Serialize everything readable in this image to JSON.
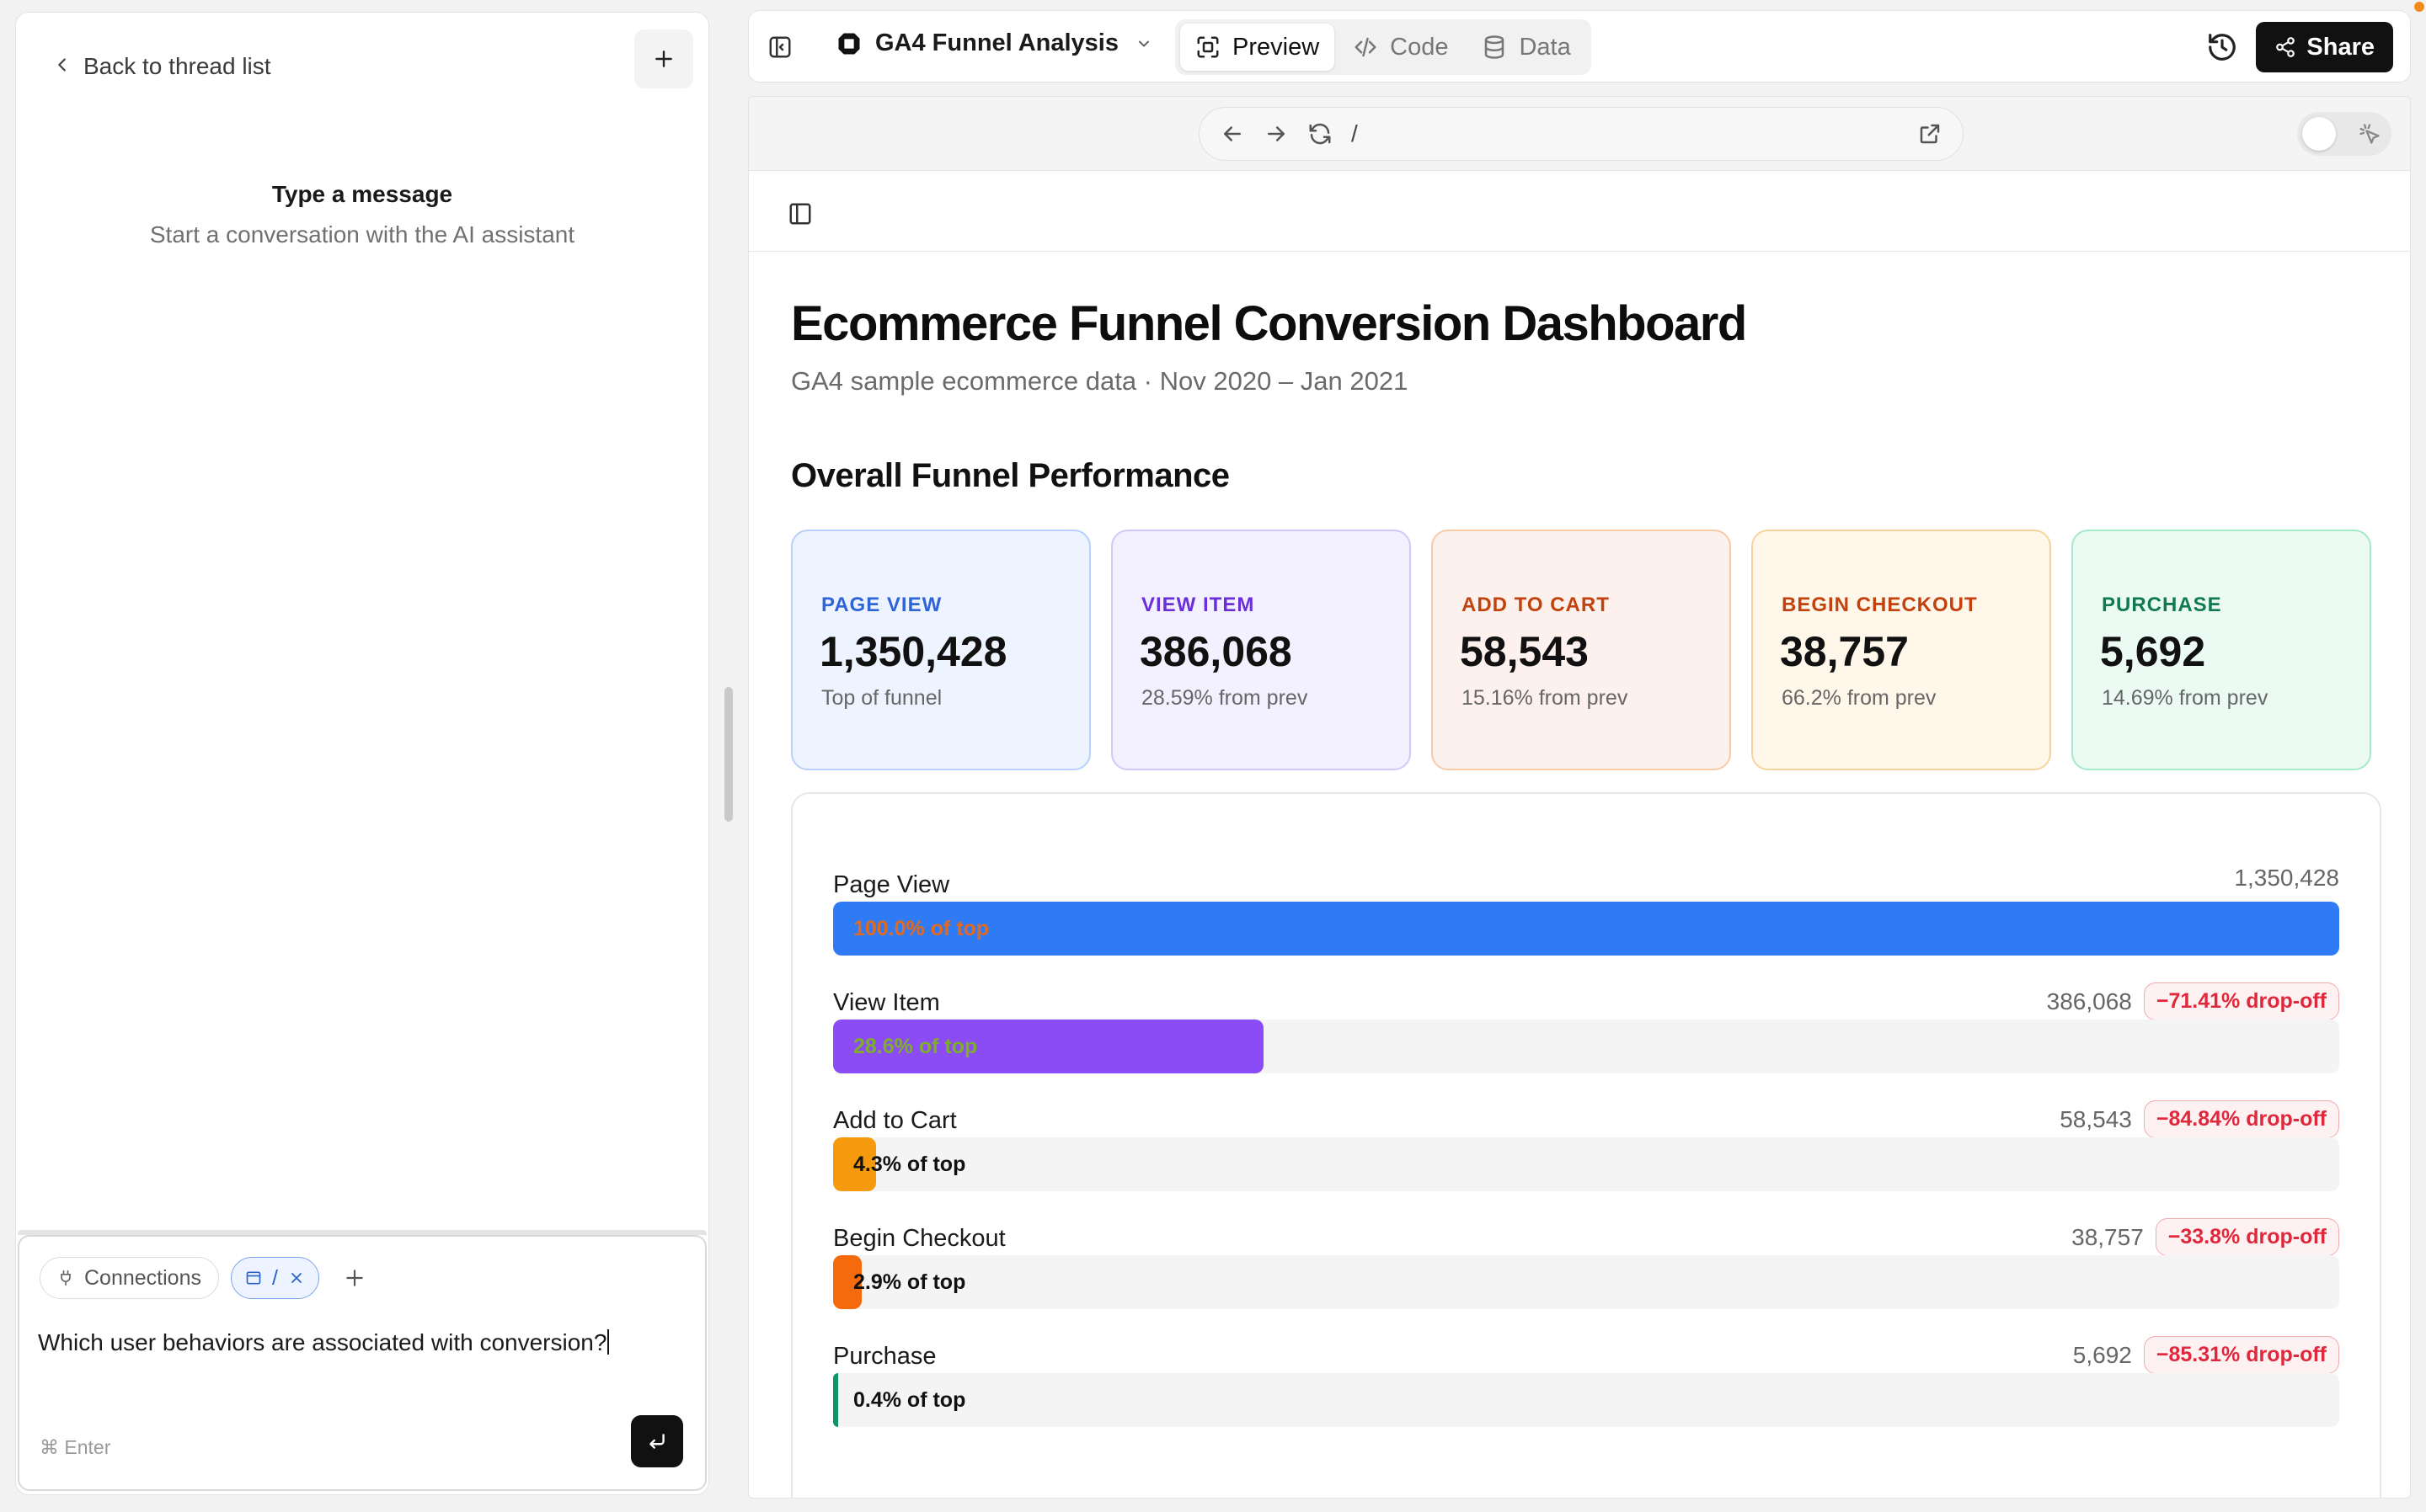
{
  "left_panel": {
    "back_label": "Back to thread list",
    "empty_title": "Type a message",
    "empty_subtitle": "Start a conversation with the AI assistant",
    "composer": {
      "chip_connections": "Connections",
      "chip_context": "/",
      "input_text": "Which user behaviors are associated with conversion?",
      "hint": "⌘ Enter"
    }
  },
  "topbar": {
    "project_name": "GA4 Funnel Analysis",
    "tabs": [
      {
        "label": "Preview",
        "active": true
      },
      {
        "label": "Code",
        "active": false
      },
      {
        "label": "Data",
        "active": false
      }
    ],
    "share_label": "Share"
  },
  "browser": {
    "url_path": "/"
  },
  "dashboard": {
    "title": "Ecommerce Funnel Conversion Dashboard",
    "subtitle": "GA4 sample ecommerce data · Nov 2020 – Jan 2021",
    "section_title": "Overall Funnel Performance",
    "cards": [
      {
        "label": "PAGE VIEW",
        "value": "1,350,428",
        "note": "Top of funnel",
        "accent": "#2f63d8",
        "bg": "#eef4ff",
        "border": "#b9cffb"
      },
      {
        "label": "VIEW ITEM",
        "value": "386,068",
        "note": "28.59% from prev",
        "accent": "#6a2fd8",
        "bg": "#f3f1ff",
        "border": "#d3c8fa"
      },
      {
        "label": "ADD TO CART",
        "value": "58,543",
        "note": "15.16% from prev",
        "accent": "#c2410c",
        "bg": "#fdf1ee",
        "border": "#f7c9a8"
      },
      {
        "label": "BEGIN CHECKOUT",
        "value": "38,757",
        "note": "66.2% from prev",
        "accent": "#c2410c",
        "bg": "#fff7ea",
        "border": "#f6d39c"
      },
      {
        "label": "PURCHASE",
        "value": "5,692",
        "note": "14.69% from prev",
        "accent": "#0f7a52",
        "bg": "#ebfbf3",
        "border": "#a7e8c8"
      }
    ],
    "funnel": [
      {
        "label": "Page View",
        "count": "1,350,428",
        "dropoff": "",
        "pct": 100.0,
        "bar_text": "100.0% of top",
        "color": "#2f7bf6",
        "text_color": "#e36a1c"
      },
      {
        "label": "View Item",
        "count": "386,068",
        "dropoff": "−71.41% drop-off",
        "pct": 28.6,
        "bar_text": "28.6% of top",
        "color": "#8b4cf6",
        "text_color": "#7fae2a"
      },
      {
        "label": "Add to Cart",
        "count": "58,543",
        "dropoff": "−84.84% drop-off",
        "pct": 4.3,
        "bar_text": "4.3% of top",
        "color": "#f59a0c",
        "text_color": "#111111"
      },
      {
        "label": "Begin Checkout",
        "count": "38,757",
        "dropoff": "−33.8% drop-off",
        "pct": 2.9,
        "bar_text": "2.9% of top",
        "color": "#f56a0c",
        "text_color": "#111111"
      },
      {
        "label": "Purchase",
        "count": "5,692",
        "dropoff": "−85.31% drop-off",
        "pct": 0.4,
        "bar_text": "0.4% of top",
        "color": "#11936a",
        "text_color": "#111111"
      }
    ]
  }
}
